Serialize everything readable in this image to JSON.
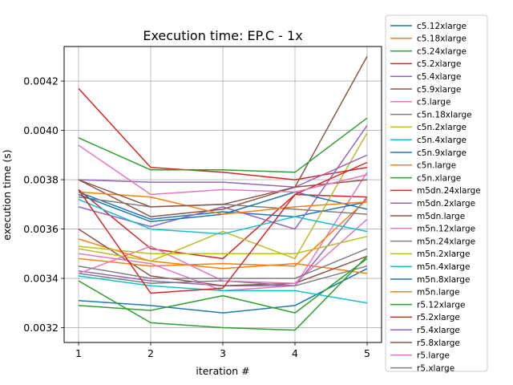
{
  "chart_data": {
    "type": "line",
    "title": "Execution time: EP.C - 1x",
    "xlabel": "iteration #",
    "ylabel": "execution time (s)",
    "x": [
      1,
      2,
      3,
      4,
      5
    ],
    "xlim": [
      0.8,
      5.2
    ],
    "ylim": [
      0.00314,
      0.00434
    ],
    "xticks": [
      1,
      2,
      3,
      4,
      5
    ],
    "yticks": [
      0.0032,
      0.0034,
      0.0036,
      0.0038,
      0.004,
      0.0042
    ],
    "ytick_labels": [
      "0.0032",
      "0.0034",
      "0.0036",
      "0.0038",
      "0.0040",
      "0.0042"
    ],
    "grid": true,
    "legend_position": "right, outside plot",
    "series": [
      {
        "name": "c5.12xlarge",
        "color": "#1f77b4",
        "values": [
          0.00331,
          0.00329,
          0.00326,
          0.00329,
          0.00344
        ]
      },
      {
        "name": "c5.18xlarge",
        "color": "#ff7f0e",
        "values": [
          0.00356,
          0.00347,
          0.00344,
          0.00346,
          0.00342
        ]
      },
      {
        "name": "c5.24xlarge",
        "color": "#2ca02c",
        "values": [
          0.00329,
          0.00327,
          0.00333,
          0.00326,
          0.00348
        ]
      },
      {
        "name": "c5.2xlarge",
        "color": "#d62728",
        "values": [
          0.00376,
          0.00352,
          0.00348,
          0.00374,
          0.00373
        ]
      },
      {
        "name": "c5.4xlarge",
        "color": "#9467bd",
        "values": [
          0.00343,
          0.00339,
          0.00337,
          0.00337,
          0.00373
        ]
      },
      {
        "name": "c5.9xlarge",
        "color": "#8c564b",
        "values": [
          0.0036,
          0.00341,
          0.00337,
          0.00338,
          0.00349
        ]
      },
      {
        "name": "c5.large",
        "color": "#e377c2",
        "values": [
          0.0035,
          0.00346,
          0.00335,
          0.00337,
          0.00383
        ]
      },
      {
        "name": "c5n.18xlarge",
        "color": "#7f7f7f",
        "values": [
          0.00342,
          0.00338,
          0.00339,
          0.00337,
          0.00345
        ]
      },
      {
        "name": "c5n.2xlarge",
        "color": "#bcbd22",
        "values": [
          0.00352,
          0.00347,
          0.00359,
          0.00348,
          0.00399
        ]
      },
      {
        "name": "c5n.4xlarge",
        "color": "#17becf",
        "values": [
          0.00341,
          0.00337,
          0.00335,
          0.00335,
          0.0033
        ]
      },
      {
        "name": "c5n.9xlarge",
        "color": "#1f77b4",
        "values": [
          0.00375,
          0.00364,
          0.00367,
          0.00365,
          0.00371
        ]
      },
      {
        "name": "c5n.large",
        "color": "#ff7f0e",
        "values": [
          0.00348,
          0.00345,
          0.00346,
          0.00345,
          0.00372
        ]
      },
      {
        "name": "c5n.xlarge",
        "color": "#2ca02c",
        "values": [
          0.00339,
          0.00322,
          0.0032,
          0.00319,
          0.00349
        ]
      },
      {
        "name": "m5dn.24xlarge",
        "color": "#d62728",
        "values": [
          0.00417,
          0.00385,
          0.00383,
          0.0038,
          0.00385
        ]
      },
      {
        "name": "m5dn.2xlarge",
        "color": "#9467bd",
        "values": [
          0.00369,
          0.00361,
          0.00369,
          0.0036,
          0.00402
        ]
      },
      {
        "name": "m5dn.large",
        "color": "#8c564b",
        "values": [
          0.0038,
          0.00365,
          0.00368,
          0.00377,
          0.0043
        ]
      },
      {
        "name": "m5n.12xlarge",
        "color": "#e377c2",
        "values": [
          0.00342,
          0.00353,
          0.00339,
          0.00338,
          0.00364
        ]
      },
      {
        "name": "m5n.24xlarge",
        "color": "#7f7f7f",
        "values": [
          0.00373,
          0.00369,
          0.0037,
          0.00368,
          0.00366
        ]
      },
      {
        "name": "m5n.2xlarge",
        "color": "#bcbd22",
        "values": [
          0.00353,
          0.0035,
          0.0035,
          0.0035,
          0.00357
        ]
      },
      {
        "name": "m5n.4xlarge",
        "color": "#17becf",
        "values": [
          0.00372,
          0.0036,
          0.00358,
          0.00365,
          0.00359
        ]
      },
      {
        "name": "m5n.8xlarge",
        "color": "#1f77b4",
        "values": [
          0.00374,
          0.00363,
          0.00366,
          0.00375,
          0.00368
        ]
      },
      {
        "name": "m5n.large",
        "color": "#ff7f0e",
        "values": [
          0.00375,
          0.00373,
          0.00366,
          0.00369,
          0.00371
        ]
      },
      {
        "name": "r5.12xlarge",
        "color": "#2ca02c",
        "values": [
          0.00397,
          0.00384,
          0.00384,
          0.00383,
          0.00405
        ]
      },
      {
        "name": "r5.2xlarge",
        "color": "#d62728",
        "values": [
          0.00376,
          0.00334,
          0.00336,
          0.00374,
          0.00387
        ]
      },
      {
        "name": "r5.4xlarge",
        "color": "#9467bd",
        "values": [
          0.0038,
          0.00379,
          0.00379,
          0.00377,
          0.0039
        ]
      },
      {
        "name": "r5.8xlarge",
        "color": "#8c564b",
        "values": [
          0.0038,
          0.00369,
          0.0037,
          0.00377,
          0.0038
        ]
      },
      {
        "name": "r5.large",
        "color": "#e377c2",
        "values": [
          0.00394,
          0.00374,
          0.00376,
          0.00375,
          0.00382
        ]
      },
      {
        "name": "r5.xlarge",
        "color": "#7f7f7f",
        "values": [
          0.00345,
          0.0034,
          0.0034,
          0.0034,
          0.00352
        ]
      }
    ]
  }
}
